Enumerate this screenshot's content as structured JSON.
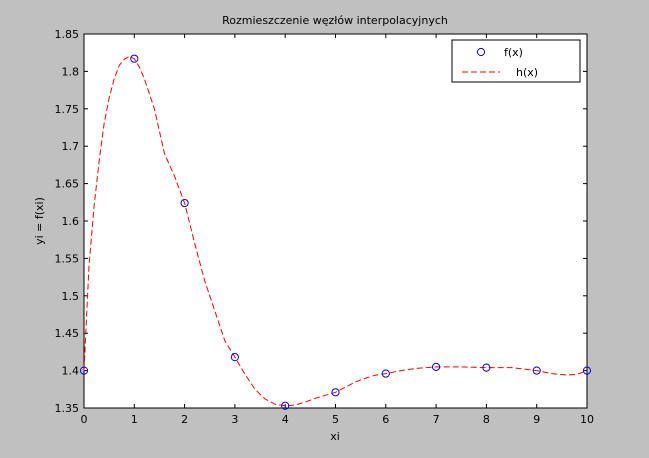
{
  "chart_data": {
    "type": "line",
    "title": "Rozmieszczenie węzłów interpolacyjnych",
    "xlabel": "xi",
    "ylabel": "yi = f(xi)",
    "xlim": [
      0,
      10
    ],
    "ylim": [
      1.35,
      1.85
    ],
    "xticks": [
      0,
      1,
      2,
      3,
      4,
      5,
      6,
      7,
      8,
      9,
      10
    ],
    "yticks": [
      1.35,
      1.4,
      1.45,
      1.5,
      1.55,
      1.6,
      1.65,
      1.7,
      1.75,
      1.8,
      1.85
    ],
    "xtick_labels": [
      "0",
      "1",
      "2",
      "3",
      "4",
      "5",
      "6",
      "7",
      "8",
      "9",
      "10"
    ],
    "ytick_labels": [
      "1.35",
      "1.4",
      "1.45",
      "1.5",
      "1.55",
      "1.6",
      "1.65",
      "1.7",
      "1.75",
      "1.8",
      "1.85"
    ],
    "grid": false,
    "legend_position": "top-right",
    "series": [
      {
        "name": "f(x)",
        "style": "markers",
        "marker": "circle",
        "color": "#0000ff",
        "x": [
          0,
          1,
          2,
          3,
          4,
          5,
          6,
          7,
          8,
          9,
          10
        ],
        "y": [
          1.4,
          1.817,
          1.624,
          1.418,
          1.353,
          1.371,
          1.396,
          1.405,
          1.404,
          1.4,
          1.4
        ]
      },
      {
        "name": "h(x)",
        "style": "dashed-line",
        "color": "#ff0000",
        "x": [
          0,
          0.05,
          0.1,
          0.2,
          0.3,
          0.4,
          0.5,
          0.6,
          0.7,
          0.8,
          0.9,
          1.0,
          1.1,
          1.2,
          1.3,
          1.4,
          1.5,
          1.6,
          1.8,
          2.0,
          2.2,
          2.4,
          2.6,
          2.8,
          3.0,
          3.2,
          3.4,
          3.6,
          3.8,
          4.0,
          4.2,
          4.4,
          4.6,
          4.8,
          5.0,
          5.2,
          5.4,
          5.6,
          5.8,
          6.0,
          6.3,
          6.6,
          7.0,
          7.5,
          8.0,
          8.5,
          9.0,
          9.3,
          9.6,
          9.8,
          10.0
        ],
        "y": [
          1.4,
          1.47,
          1.54,
          1.62,
          1.68,
          1.73,
          1.765,
          1.79,
          1.808,
          1.816,
          1.82,
          1.817,
          1.806,
          1.79,
          1.77,
          1.75,
          1.72,
          1.69,
          1.66,
          1.624,
          1.57,
          1.52,
          1.48,
          1.44,
          1.418,
          1.395,
          1.375,
          1.362,
          1.355,
          1.353,
          1.354,
          1.358,
          1.363,
          1.367,
          1.371,
          1.378,
          1.385,
          1.39,
          1.394,
          1.396,
          1.4,
          1.403,
          1.405,
          1.405,
          1.404,
          1.404,
          1.4,
          1.396,
          1.394,
          1.395,
          1.4
        ]
      }
    ]
  }
}
